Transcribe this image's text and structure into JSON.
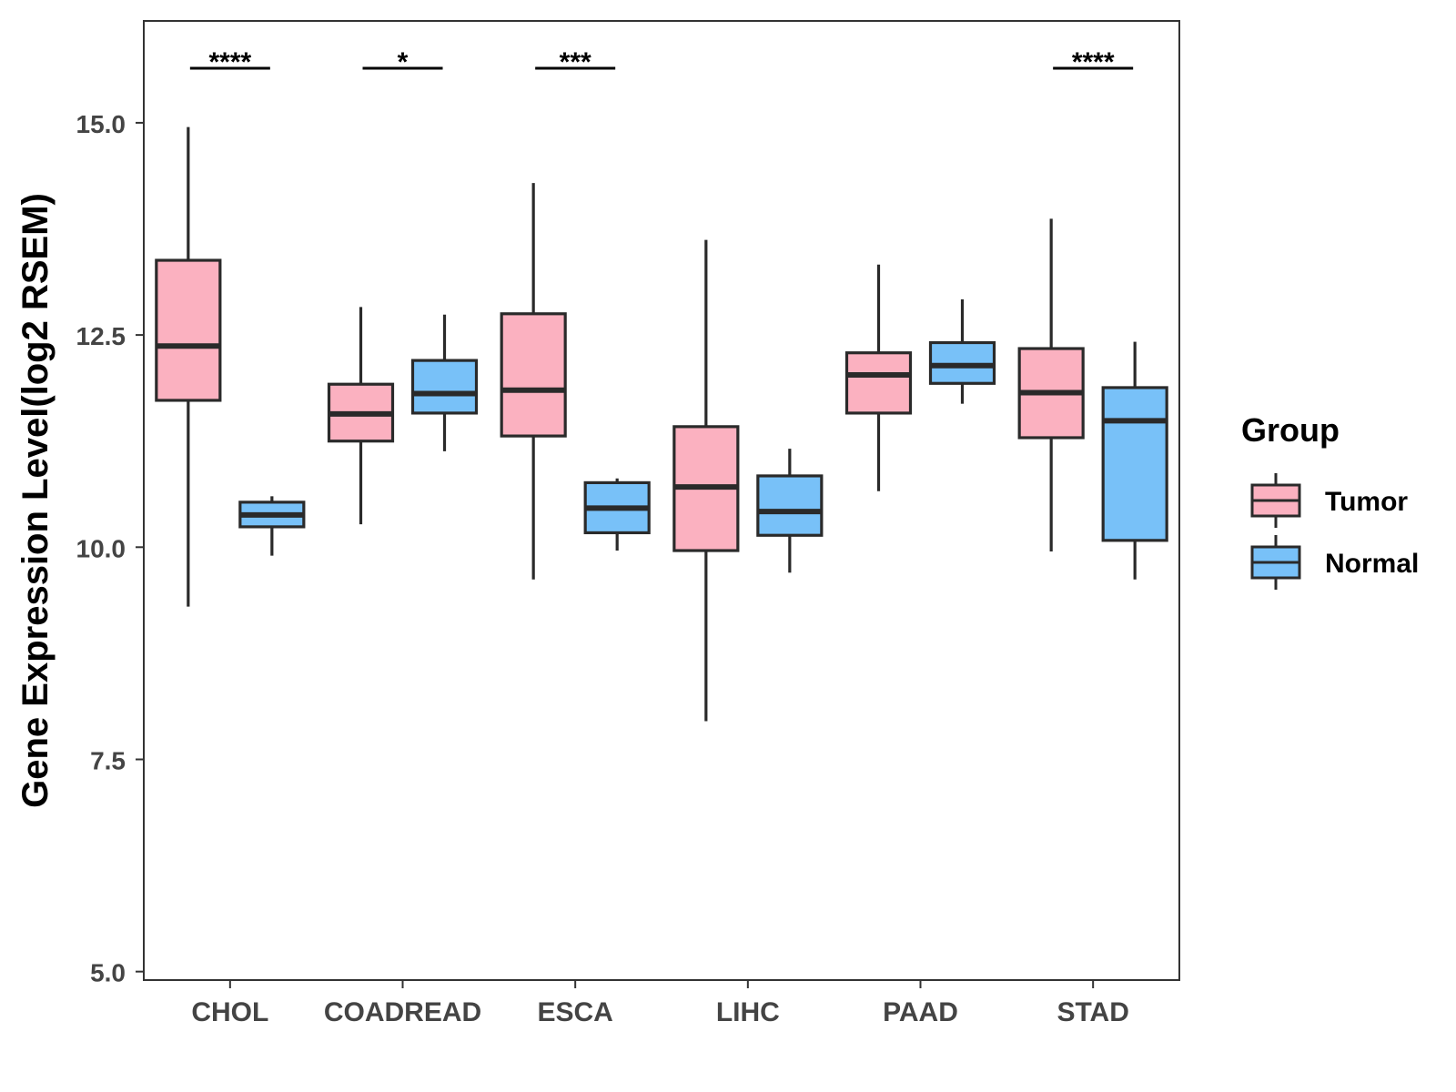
{
  "chart_data": {
    "type": "boxplot",
    "title": "",
    "xlabel": "",
    "ylabel": "Gene Expression Level(log2 RSEM)",
    "ylim": [
      4.9,
      16.2
    ],
    "yticks": [
      5.0,
      7.5,
      10.0,
      12.5,
      15.0
    ],
    "ytick_labels": [
      "5.0",
      "7.5",
      "10.0",
      "12.5",
      "15.0"
    ],
    "grid": false,
    "categories": [
      "CHOL",
      "COADREAD",
      "ESCA",
      "LIHC",
      "PAAD",
      "STAD"
    ],
    "legend": {
      "title": "Group",
      "position": "right",
      "entries": [
        {
          "name": "Tumor",
          "color": "#FBB1C0"
        },
        {
          "name": "Normal",
          "color": "#78C1F8"
        }
      ]
    },
    "series": [
      {
        "name": "Tumor",
        "color": "#FBB1C0",
        "boxes": [
          {
            "category": "CHOL",
            "whisker_low": 9.3,
            "q1": 11.73,
            "median": 12.37,
            "q3": 13.38,
            "whisker_high": 14.95
          },
          {
            "category": "COADREAD",
            "whisker_low": 10.27,
            "q1": 11.25,
            "median": 11.57,
            "q3": 11.92,
            "whisker_high": 12.83
          },
          {
            "category": "ESCA",
            "whisker_low": 9.62,
            "q1": 11.31,
            "median": 11.85,
            "q3": 12.75,
            "whisker_high": 14.29
          },
          {
            "category": "LIHC",
            "whisker_low": 7.95,
            "q1": 9.96,
            "median": 10.71,
            "q3": 11.42,
            "whisker_high": 13.62
          },
          {
            "category": "PAAD",
            "whisker_low": 10.66,
            "q1": 11.58,
            "median": 12.03,
            "q3": 12.29,
            "whisker_high": 13.33
          },
          {
            "category": "STAD",
            "whisker_low": 9.95,
            "q1": 11.29,
            "median": 11.82,
            "q3": 12.34,
            "whisker_high": 13.87
          }
        ]
      },
      {
        "name": "Normal",
        "color": "#78C1F8",
        "boxes": [
          {
            "category": "CHOL",
            "whisker_low": 9.9,
            "q1": 10.24,
            "median": 10.38,
            "q3": 10.53,
            "whisker_high": 10.6
          },
          {
            "category": "COADREAD",
            "whisker_low": 11.13,
            "q1": 11.58,
            "median": 11.81,
            "q3": 12.2,
            "whisker_high": 12.74
          },
          {
            "category": "ESCA",
            "whisker_low": 9.96,
            "q1": 10.17,
            "median": 10.46,
            "q3": 10.76,
            "whisker_high": 10.81
          },
          {
            "category": "LIHC",
            "whisker_low": 9.7,
            "q1": 10.14,
            "median": 10.42,
            "q3": 10.84,
            "whisker_high": 11.16
          },
          {
            "category": "PAAD",
            "whisker_low": 11.69,
            "q1": 11.93,
            "median": 12.14,
            "q3": 12.41,
            "whisker_high": 12.92
          },
          {
            "category": "STAD",
            "whisker_low": 9.62,
            "q1": 10.08,
            "median": 11.49,
            "q3": 11.88,
            "whisker_high": 12.42
          }
        ]
      }
    ],
    "annotations": [
      {
        "category": "CHOL",
        "label": "****"
      },
      {
        "category": "COADREAD",
        "label": "*"
      },
      {
        "category": "ESCA",
        "label": "***"
      },
      {
        "category": "STAD",
        "label": "****"
      }
    ]
  }
}
